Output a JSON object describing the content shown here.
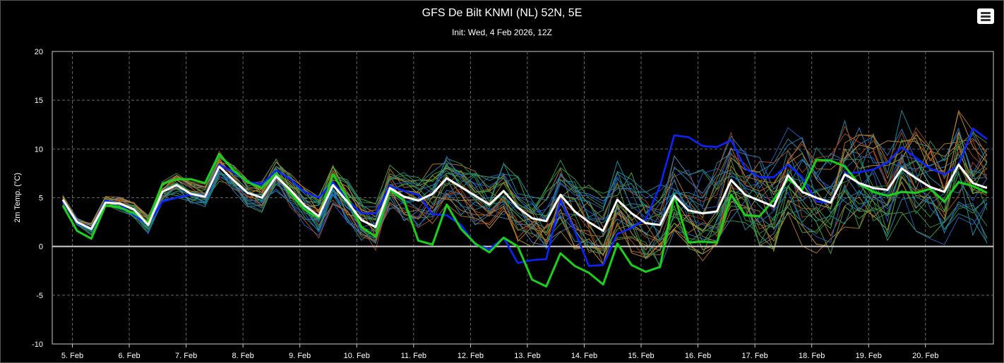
{
  "ui": {
    "menu_icon": "hamburger-menu-icon"
  },
  "chart_data": {
    "type": "line",
    "title": "GFS De Bilt KNMI (NL) 52N, 5E",
    "subtitle": "Init: Wed, 4 Feb 2026, 12Z",
    "ylabel": "2m Temp. (°C)",
    "xlabel": "",
    "ylim": [
      -10,
      20
    ],
    "yticks": [
      20,
      15,
      10,
      5,
      0,
      -5,
      -10
    ],
    "x_start": "4 Feb 2026 18Z",
    "x_step_hours": 6,
    "points": 66,
    "xticks": [
      {
        "label": "5. Feb",
        "index": 0.67
      },
      {
        "label": "6. Feb",
        "index": 4.67
      },
      {
        "label": "7. Feb",
        "index": 8.67
      },
      {
        "label": "8. Feb",
        "index": 12.67
      },
      {
        "label": "9. Feb",
        "index": 16.67
      },
      {
        "label": "10. Feb",
        "index": 20.67
      },
      {
        "label": "11. Feb",
        "index": 24.67
      },
      {
        "label": "12. Feb",
        "index": 28.67
      },
      {
        "label": "13. Feb",
        "index": 32.67
      },
      {
        "label": "14. Feb",
        "index": 36.67
      },
      {
        "label": "15. Feb",
        "index": 40.67
      },
      {
        "label": "16. Feb",
        "index": 44.67
      },
      {
        "label": "17. Feb",
        "index": 48.67
      },
      {
        "label": "18. Feb",
        "index": 52.67
      },
      {
        "label": "19. Feb",
        "index": 56.67
      },
      {
        "label": "20. Feb",
        "index": 60.67
      }
    ],
    "grid": true,
    "zero_line": true,
    "colors": {
      "mean": "#ffffff",
      "operational": "#0a24ff",
      "control": "#19d119",
      "members": [
        "#2f8fd8",
        "#1fa0b8",
        "#3aa84a",
        "#c9822a",
        "#b8502a",
        "#2a6ad8",
        "#58b84a",
        "#d8a03a"
      ]
    },
    "series": [
      {
        "name": "",
        "role": "mean",
        "values": [
          4.8,
          2.5,
          1.8,
          4.5,
          4.4,
          3.8,
          2.2,
          5.6,
          6.3,
          5.4,
          5.1,
          8.2,
          6.8,
          5.5,
          5.0,
          7.2,
          5.8,
          4.2,
          3.1,
          6.3,
          4.6,
          2.7,
          2.0,
          6.0,
          5.1,
          4.7,
          5.4,
          7.0,
          6.1,
          5.2,
          4.3,
          5.7,
          4.0,
          2.9,
          2.6,
          5.3,
          3.6,
          2.5,
          1.6,
          4.8,
          3.4,
          2.4,
          2.2,
          5.2,
          3.7,
          3.4,
          3.6,
          6.8,
          5.3,
          4.7,
          4.1,
          7.3,
          5.6,
          5.0,
          4.5,
          7.4,
          6.5,
          6.0,
          5.8,
          8.0,
          7.0,
          6.1,
          5.6,
          8.4,
          6.5,
          6.0
        ]
      },
      {
        "name": "",
        "role": "operational",
        "values": [
          4.6,
          2.4,
          1.8,
          4.7,
          4.4,
          3.2,
          2.3,
          4.6,
          5.0,
          5.3,
          5.2,
          8.4,
          7.6,
          6.6,
          6.4,
          7.8,
          6.9,
          5.6,
          5.0,
          6.6,
          4.8,
          3.4,
          3.4,
          6.2,
          5.7,
          5.3,
          3.3,
          3.2,
          2.2,
          0.2,
          -0.3,
          0.9,
          -1.7,
          -1.4,
          -1.3,
          4.8,
          1.6,
          -2.0,
          -1.9,
          1.3,
          1.9,
          2.8,
          6.2,
          11.4,
          11.2,
          10.3,
          10.2,
          10.9,
          8.0,
          7.1,
          7.1,
          8.4,
          7.1,
          4.6,
          4.5,
          7.5,
          7.6,
          7.9,
          8.6,
          10.2,
          9.1,
          8.0,
          7.4,
          8.3,
          12.1,
          11.0
        ]
      },
      {
        "name": "",
        "role": "control",
        "values": [
          4.2,
          1.6,
          0.8,
          4.2,
          4.0,
          3.4,
          2.5,
          6.4,
          6.9,
          6.9,
          6.5,
          9.5,
          7.8,
          6.6,
          6.0,
          7.5,
          5.5,
          3.8,
          2.9,
          7.4,
          5.0,
          2.0,
          1.0,
          5.8,
          4.7,
          0.6,
          0.2,
          4.3,
          1.8,
          0.3,
          -0.6,
          0.9,
          0.0,
          -3.4,
          -4.1,
          -0.7,
          -2.0,
          -2.7,
          -3.9,
          0.3,
          -1.9,
          -2.6,
          -2.1,
          5.3,
          0.4,
          0.5,
          0.4,
          5.3,
          3.2,
          3.1,
          4.8,
          6.9,
          5.8,
          8.9,
          8.8,
          8.2,
          6.4,
          5.6,
          5.2,
          5.6,
          5.5,
          5.9,
          4.6,
          6.6,
          6.2,
          5.5
        ]
      }
    ]
  }
}
